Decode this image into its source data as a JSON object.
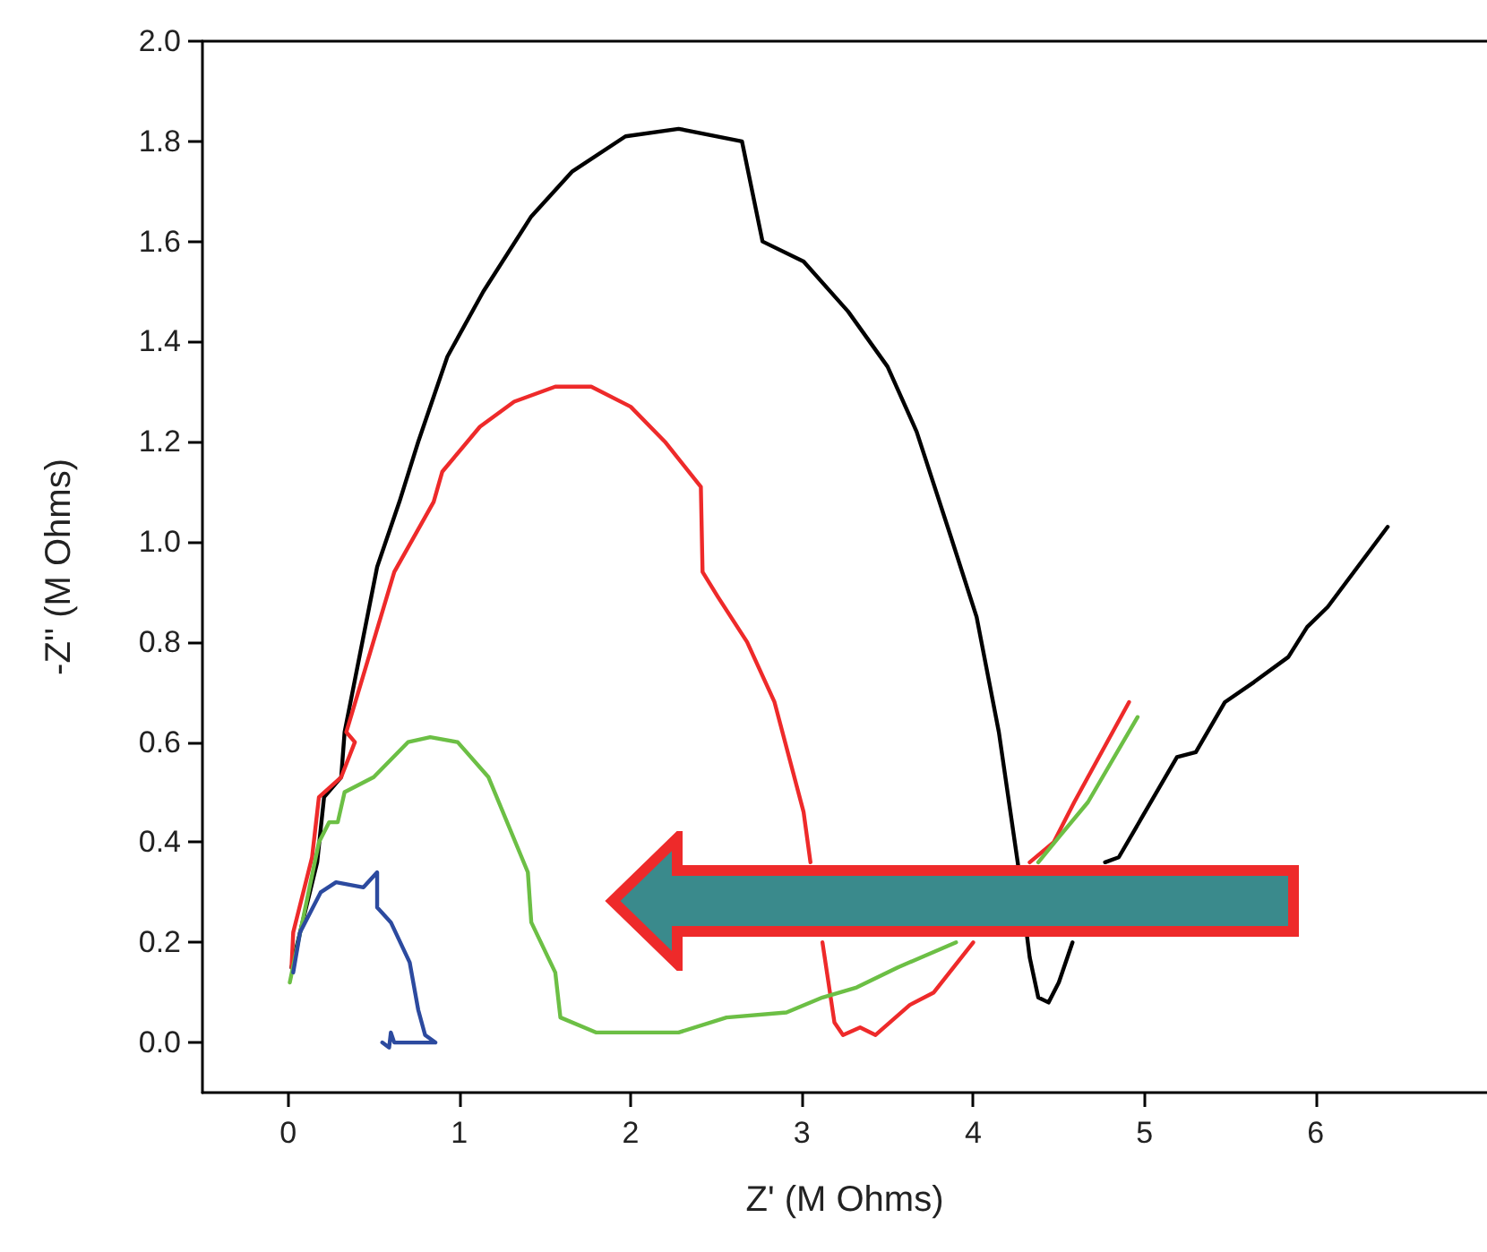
{
  "chart_data": {
    "type": "line",
    "xlabel": "Z' (M Ohms)",
    "ylabel": "-Z'' (M Ohms)",
    "xlim": [
      -0.5,
      7
    ],
    "xticks": [
      0,
      1,
      2,
      3,
      4,
      5,
      6
    ],
    "ylim": [
      -0.1,
      2.0
    ],
    "yticks": [
      {
        "value": 0,
        "label": "0.0"
      },
      0.2,
      0.4,
      0.6,
      0.8,
      {
        "value": 1,
        "label": "1.0"
      },
      1.2,
      1.4,
      1.6,
      1.8,
      {
        "value": 2,
        "label": "2.0"
      }
    ],
    "grid": false,
    "marker": "none",
    "line_style": "solid",
    "series": [
      {
        "color": "#000000",
        "x": [
          0.02,
          0.17,
          0.21,
          0.31,
          0.33,
          0.52,
          0.65,
          0.76,
          0.93,
          1.14,
          1.42,
          1.66,
          1.97,
          2.28,
          2.65,
          2.77,
          3.01,
          3.27,
          3.5,
          3.67,
          3.87,
          4.02,
          4.15,
          4.26,
          4.33,
          4.38,
          4.44,
          4.5,
          4.58,
          4.68,
          4.77,
          4.85,
          5.19,
          5.3,
          5.47,
          5.64,
          5.84,
          5.95,
          6.07,
          6.42
        ],
        "values": [
          0.15,
          0.36,
          0.49,
          0.53,
          0.62,
          0.95,
          1.08,
          1.2,
          1.37,
          1.5,
          1.65,
          1.74,
          1.81,
          1.825,
          1.8,
          1.6,
          1.56,
          1.46,
          1.35,
          1.22,
          1.01,
          0.85,
          0.62,
          0.36,
          0.17,
          0.09,
          0.08,
          0.12,
          0.2,
          null,
          0.36,
          0.37,
          0.57,
          0.58,
          0.68,
          0.72,
          0.77,
          0.83,
          0.87,
          1.03
        ]
      },
      {
        "color": "#ee2a2a",
        "x": [
          0.02,
          0.03,
          0.14,
          0.18,
          0.31,
          0.39,
          0.34,
          0.62,
          0.85,
          0.9,
          1.12,
          1.32,
          1.56,
          1.77,
          2.0,
          2.2,
          2.41,
          2.42,
          2.51,
          2.68,
          2.84,
          3.01,
          3.05,
          3.09,
          3.12,
          3.19,
          3.24,
          3.34,
          3.43,
          3.63,
          3.77,
          4.0,
          4.15,
          4.33,
          4.47,
          4.59,
          4.67,
          4.91
        ],
        "values": [
          0.15,
          0.22,
          0.37,
          0.49,
          0.53,
          0.6,
          0.62,
          0.94,
          1.08,
          1.14,
          1.23,
          1.28,
          1.31,
          1.31,
          1.27,
          1.2,
          1.11,
          0.94,
          0.89,
          0.8,
          0.68,
          0.46,
          0.36,
          null,
          0.2,
          0.04,
          0.015,
          0.03,
          0.015,
          0.075,
          0.1,
          0.2,
          null,
          0.36,
          0.4,
          0.48,
          0.53,
          0.68
        ]
      },
      {
        "color": "#6cbf45",
        "x": [
          0.01,
          0.18,
          0.24,
          0.29,
          0.33,
          0.5,
          0.7,
          0.83,
          0.99,
          1.17,
          1.4,
          1.42,
          1.56,
          1.59,
          1.8,
          2.05,
          2.28,
          2.56,
          2.91,
          3.12,
          3.32,
          3.56,
          3.9,
          4.15,
          4.38,
          4.5,
          4.67,
          4.96
        ],
        "values": [
          0.12,
          0.4,
          0.44,
          0.44,
          0.5,
          0.53,
          0.6,
          0.61,
          0.6,
          0.53,
          0.34,
          0.24,
          0.14,
          0.05,
          0.02,
          0.02,
          0.02,
          0.05,
          0.06,
          0.09,
          0.11,
          0.15,
          0.2,
          null,
          0.36,
          0.41,
          0.48,
          0.65
        ]
      },
      {
        "color": "#2c4a9f",
        "x": [
          0.03,
          0.07,
          0.19,
          0.28,
          0.44,
          0.52,
          0.52,
          0.6,
          0.71,
          0.76,
          0.8,
          0.86,
          0.62,
          0.6,
          0.59,
          0.55
        ],
        "values": [
          0.14,
          0.22,
          0.3,
          0.32,
          0.31,
          0.34,
          0.27,
          0.24,
          0.16,
          0.065,
          0.015,
          0.0,
          0.0,
          0.02,
          -0.01,
          0.0
        ]
      }
    ]
  }
}
